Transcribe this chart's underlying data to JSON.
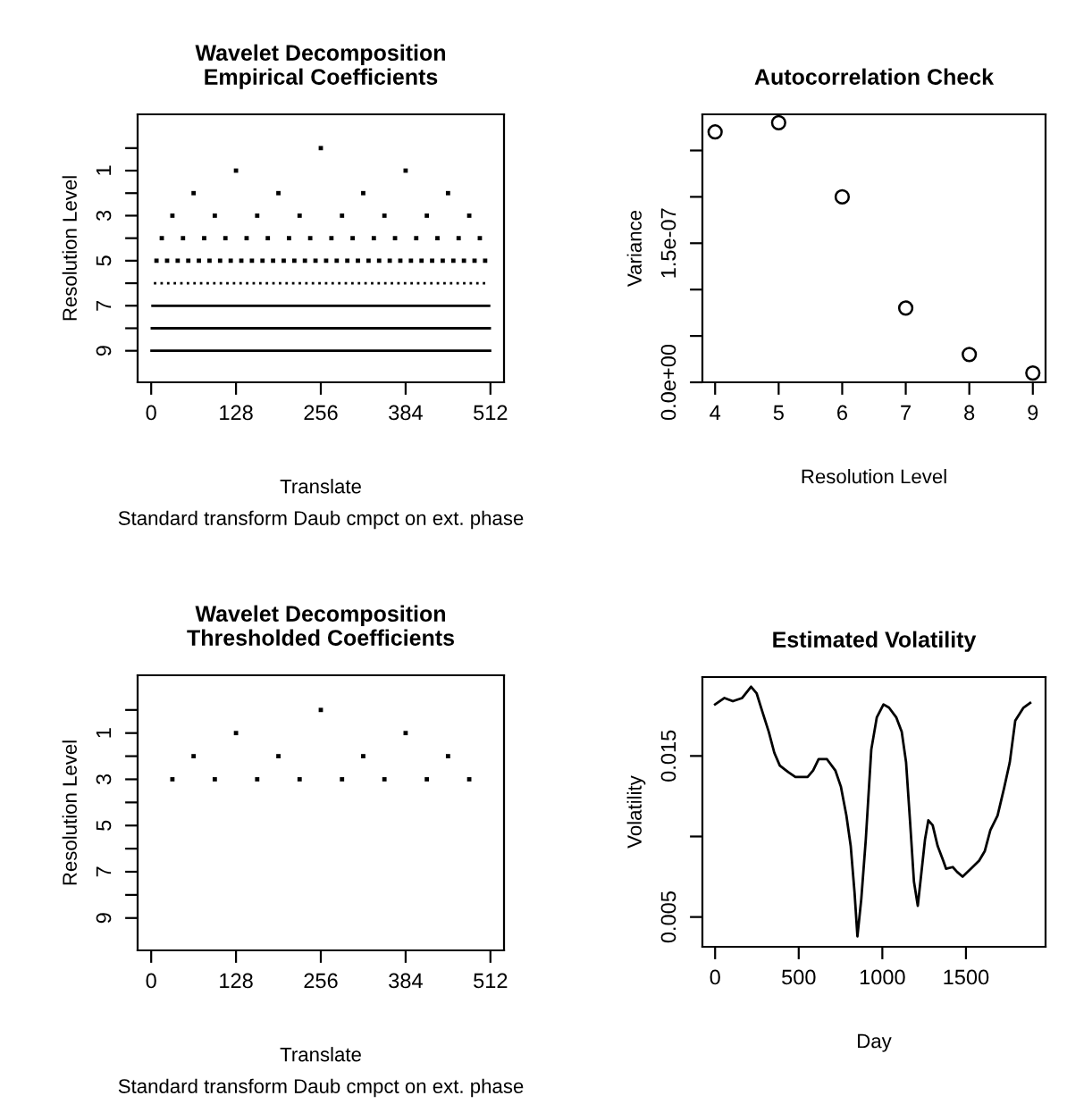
{
  "chart_data": [
    {
      "type": "scatter",
      "title": "Wavelet Decomposition\nEmpirical Coefficients",
      "xlabel": "Translate",
      "ylabel": "Resolution Level",
      "annotations": [
        "Standard transform Daub cmpct on ext. phase"
      ],
      "marker": "square",
      "grid": false,
      "legend": false,
      "xlim": [
        -20.48,
        532.48
      ],
      "ylim": [
        10.4,
        -1.5
      ],
      "xticks": [
        0,
        128,
        256,
        384,
        512
      ],
      "yticks": [
        {
          "value": 0,
          "label": null
        },
        1,
        {
          "value": 2,
          "label": null
        },
        3,
        {
          "value": 4,
          "label": null
        },
        5,
        {
          "value": 6,
          "label": null
        },
        7,
        {
          "value": 8,
          "label": null
        },
        9
      ],
      "series": [
        {
          "color": "#000000",
          "x": [
            256
          ],
          "values": [
            0
          ]
        },
        {
          "color": "#000000",
          "x": [
            128,
            384
          ],
          "values": [
            1,
            1
          ]
        },
        {
          "color": "#000000",
          "x": [
            64,
            192,
            320,
            448
          ],
          "values": [
            2,
            2,
            2,
            2
          ]
        },
        {
          "color": "#000000",
          "x": [
            32,
            96,
            160,
            224,
            288,
            352,
            416,
            480
          ],
          "values": [
            3,
            3,
            3,
            3,
            3,
            3,
            3,
            3
          ]
        },
        {
          "color": "#000000",
          "x": [
            16,
            48,
            80,
            112,
            144,
            176,
            208,
            240,
            272,
            304,
            336,
            368,
            400,
            432,
            464,
            496
          ],
          "values": [
            4,
            4,
            4,
            4,
            4,
            4,
            4,
            4,
            4,
            4,
            4,
            4,
            4,
            4,
            4,
            4
          ]
        },
        {
          "color": "#000000",
          "x": [
            8,
            24,
            40,
            56,
            72,
            88,
            104,
            120,
            136,
            152,
            168,
            184,
            200,
            216,
            232,
            248,
            264,
            280,
            296,
            312,
            328,
            344,
            360,
            376,
            392,
            408,
            424,
            440,
            456,
            472,
            488,
            504
          ],
          "values": [
            5,
            5,
            5,
            5,
            5,
            5,
            5,
            5,
            5,
            5,
            5,
            5,
            5,
            5,
            5,
            5,
            5,
            5,
            5,
            5,
            5,
            5,
            5,
            5,
            5,
            5,
            5,
            5,
            5,
            5,
            5,
            5
          ]
        },
        {
          "type": "line",
          "marker": "none",
          "line_style": "dotted",
          "color": "#000000",
          "x": [
            4,
            508
          ],
          "values": [
            6,
            6
          ]
        },
        {
          "type": "line",
          "marker": "none",
          "line_style": "solid",
          "color": "#000000",
          "x": [
            2,
            510
          ],
          "values": [
            7,
            7
          ]
        },
        {
          "type": "line",
          "marker": "none",
          "line_style": "solid",
          "color": "#000000",
          "x": [
            1,
            511
          ],
          "values": [
            8,
            8
          ]
        },
        {
          "type": "line",
          "marker": "none",
          "line_style": "solid",
          "color": "#000000",
          "x": [
            0.5,
            511.5
          ],
          "values": [
            9,
            9
          ]
        }
      ]
    },
    {
      "type": "scatter",
      "title": "Autocorrelation Check",
      "xlabel": "Resolution Level",
      "ylabel": "Variance",
      "marker": "circle",
      "grid": false,
      "legend": false,
      "xlim": [
        3.8,
        9.2
      ],
      "ylim": [
        0,
        2.89e-07
      ],
      "xticks": [
        4,
        5,
        6,
        7,
        8,
        9
      ],
      "yticks": [
        {
          "value": 0,
          "label": "0.0e+00"
        },
        {
          "value": 5e-08,
          "label": null
        },
        {
          "value": 1e-07,
          "label": null
        },
        {
          "value": 1.5e-07,
          "label": "1.5e-07"
        },
        {
          "value": 2e-07,
          "label": null
        },
        {
          "value": 2.5e-07,
          "label": null
        }
      ],
      "series": [
        {
          "color": "#000000",
          "x": [
            4,
            5,
            6,
            7,
            8,
            9
          ],
          "values": [
            2.7e-07,
            2.8e-07,
            2e-07,
            8e-08,
            3e-08,
            1e-08
          ]
        }
      ]
    },
    {
      "type": "scatter",
      "title": "Wavelet Decomposition\nThresholded Coefficients",
      "xlabel": "Translate",
      "ylabel": "Resolution Level",
      "annotations": [
        "Standard transform Daub cmpct on ext. phase"
      ],
      "marker": "square",
      "grid": false,
      "legend": false,
      "xlim": [
        -20.48,
        532.48
      ],
      "ylim": [
        10.4,
        -1.5
      ],
      "xticks": [
        0,
        128,
        256,
        384,
        512
      ],
      "yticks": [
        {
          "value": 0,
          "label": null
        },
        1,
        {
          "value": 2,
          "label": null
        },
        3,
        {
          "value": 4,
          "label": null
        },
        5,
        {
          "value": 6,
          "label": null
        },
        7,
        {
          "value": 8,
          "label": null
        },
        9
      ],
      "series": [
        {
          "color": "#000000",
          "x": [
            256
          ],
          "values": [
            0
          ]
        },
        {
          "color": "#000000",
          "x": [
            128,
            384
          ],
          "values": [
            1,
            1
          ]
        },
        {
          "color": "#000000",
          "x": [
            64,
            192,
            320,
            448
          ],
          "values": [
            2,
            2,
            2,
            2
          ]
        },
        {
          "color": "#000000",
          "x": [
            32,
            96,
            160,
            224,
            288,
            352,
            416,
            480
          ],
          "values": [
            3,
            3,
            3,
            3,
            3,
            3,
            3,
            3
          ]
        }
      ]
    },
    {
      "type": "line",
      "title": "Estimated Volatility",
      "xlabel": "Day",
      "ylabel": "Volatility",
      "line_style": "solid",
      "grid": false,
      "legend": false,
      "xlim": [
        -76,
        1976
      ],
      "ylim": [
        0.00315,
        0.0199
      ],
      "xticks": [
        0,
        500,
        1000,
        1500
      ],
      "yticks": [
        {
          "value": 0.005,
          "label": "0.005"
        },
        {
          "value": 0.01,
          "label": null
        },
        {
          "value": 0.015,
          "label": "0.015"
        }
      ],
      "series": [
        {
          "color": "#000000",
          "x": [
            0,
            56,
            106,
            162,
            215,
            248,
            281,
            321,
            354,
            387,
            437,
            480,
            553,
            586,
            619,
            669,
            719,
            752,
            785,
            811,
            834,
            851,
            874,
            901,
            934,
            967,
            1007,
            1040,
            1083,
            1116,
            1142,
            1166,
            1189,
            1212,
            1232,
            1255,
            1275,
            1301,
            1331,
            1364,
            1381,
            1421,
            1447,
            1480,
            1530,
            1579,
            1613,
            1646,
            1689,
            1728,
            1762,
            1795,
            1844,
            1884
          ],
          "values": [
            0.0182,
            0.0186,
            0.0184,
            0.0186,
            0.0193,
            0.0189,
            0.0178,
            0.0165,
            0.0152,
            0.0144,
            0.014,
            0.0137,
            0.0137,
            0.0141,
            0.0148,
            0.0148,
            0.0141,
            0.0131,
            0.0113,
            0.0094,
            0.0065,
            0.0038,
            0.0061,
            0.0098,
            0.0154,
            0.0174,
            0.0182,
            0.018,
            0.0174,
            0.0165,
            0.0146,
            0.0109,
            0.0072,
            0.0057,
            0.0076,
            0.0098,
            0.011,
            0.0107,
            0.0094,
            0.0085,
            0.008,
            0.0081,
            0.0078,
            0.0075,
            0.008,
            0.0085,
            0.0091,
            0.0104,
            0.0113,
            0.013,
            0.0146,
            0.0172,
            0.018,
            0.0183
          ]
        }
      ]
    }
  ]
}
